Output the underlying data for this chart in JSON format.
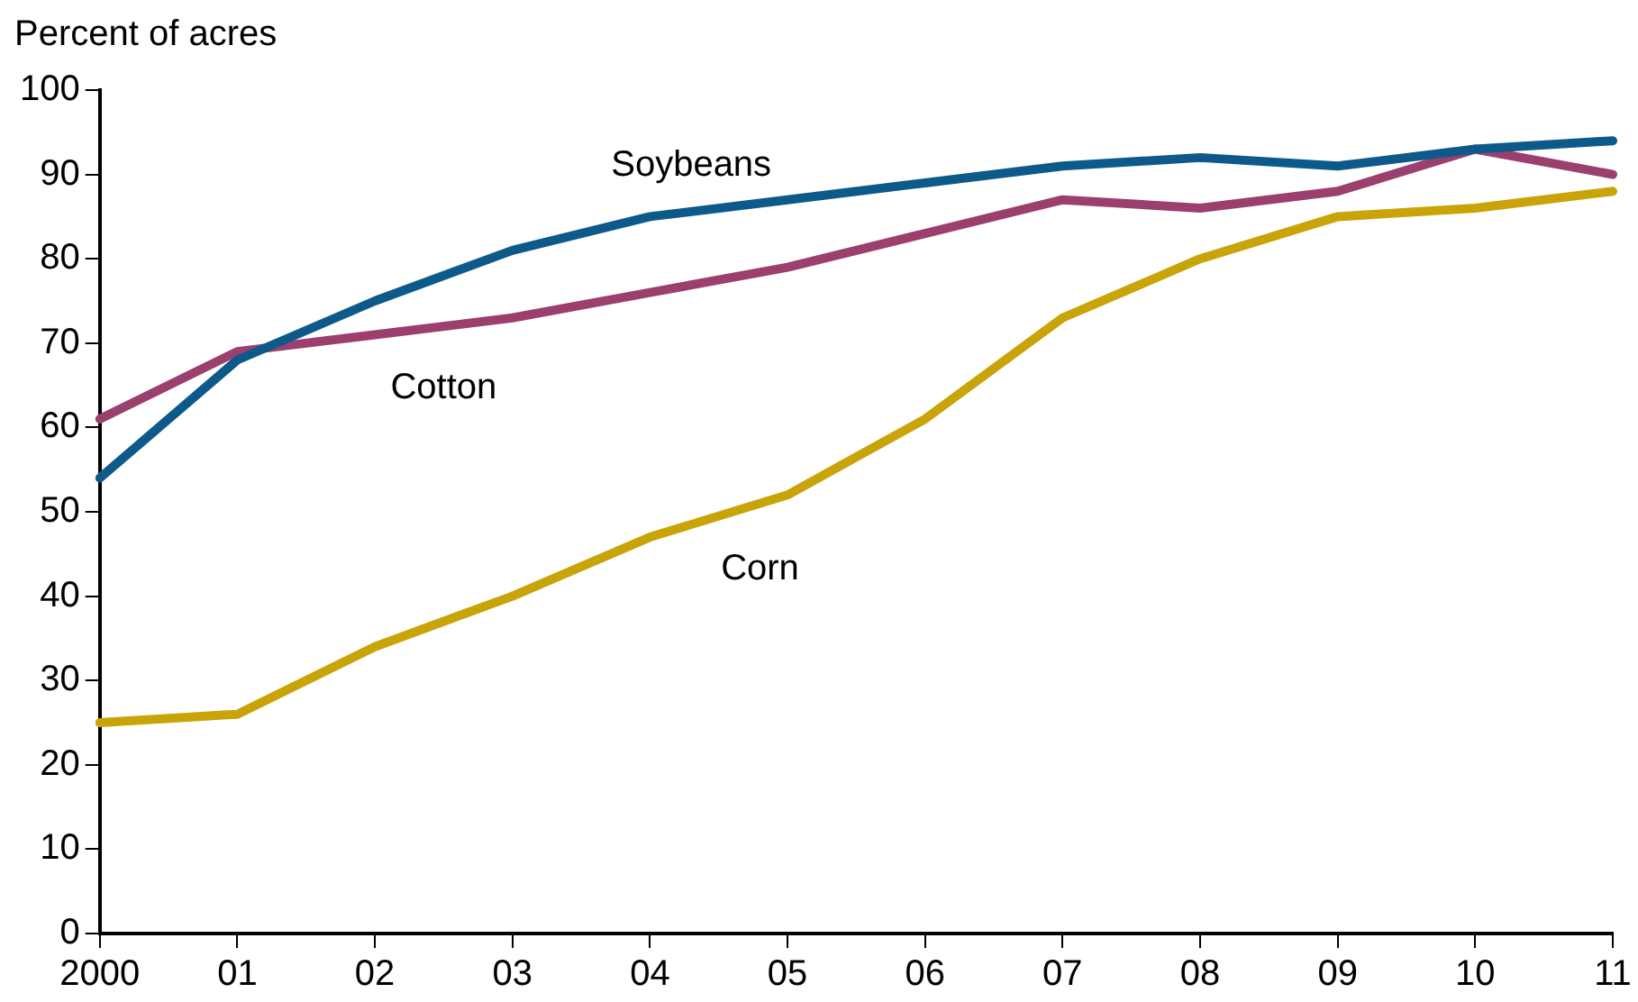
{
  "chart_data": {
    "type": "line",
    "ylabel": "Percent of acres",
    "categories": [
      "2000",
      "01",
      "02",
      "03",
      "04",
      "05",
      "06",
      "07",
      "08",
      "09",
      "10",
      "11"
    ],
    "series": [
      {
        "name": "Soybeans",
        "color": "#0d5a8a",
        "values": [
          54,
          68,
          75,
          81,
          85,
          87,
          89,
          91,
          92,
          91,
          93,
          94
        ]
      },
      {
        "name": "Cotton",
        "color": "#9b3f6e",
        "values": [
          61,
          69,
          71,
          73,
          76,
          79,
          83,
          87,
          86,
          88,
          93,
          90
        ]
      },
      {
        "name": "Corn",
        "color": "#c9a408",
        "values": [
          25,
          26,
          34,
          40,
          47,
          52,
          61,
          73,
          80,
          85,
          86,
          88
        ]
      }
    ],
    "ylim": [
      0,
      100
    ],
    "yticks": [
      0,
      10,
      20,
      30,
      40,
      50,
      60,
      70,
      80,
      90,
      100
    ],
    "grid": false,
    "legend": false,
    "marker": "none",
    "line_style": "solid"
  }
}
